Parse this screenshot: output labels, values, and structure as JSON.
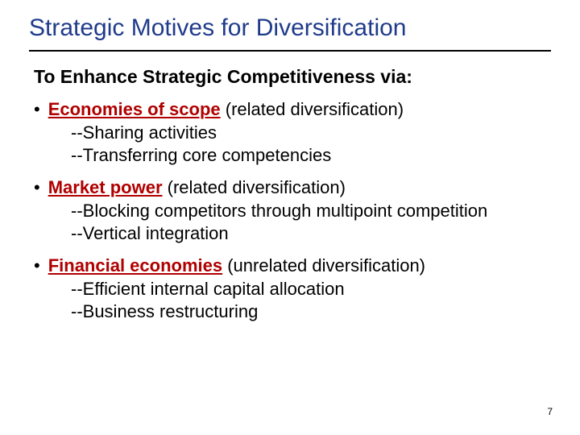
{
  "title": "Strategic Motives for Diversification",
  "subhead": "To Enhance Strategic Competitiveness via:",
  "bullets": [
    {
      "term": "Economies of scope",
      "paren": " (related diversification)",
      "subs": [
        "--Sharing activities",
        "--Transferring core competencies"
      ]
    },
    {
      "term": "Market power",
      "paren": " (related diversification)",
      "subs": [
        "--Blocking competitors through multipoint competition",
        "--Vertical integration"
      ]
    },
    {
      "term": "Financial economies",
      "paren": " (unrelated diversification)",
      "subs": [
        "--Efficient internal capital allocation",
        "--Business restructuring"
      ]
    }
  ],
  "page_number": "7",
  "colors": {
    "title": "#1f3b8a",
    "term": "#b00000",
    "text": "#000000",
    "rule": "#000000",
    "background": "#ffffff"
  }
}
